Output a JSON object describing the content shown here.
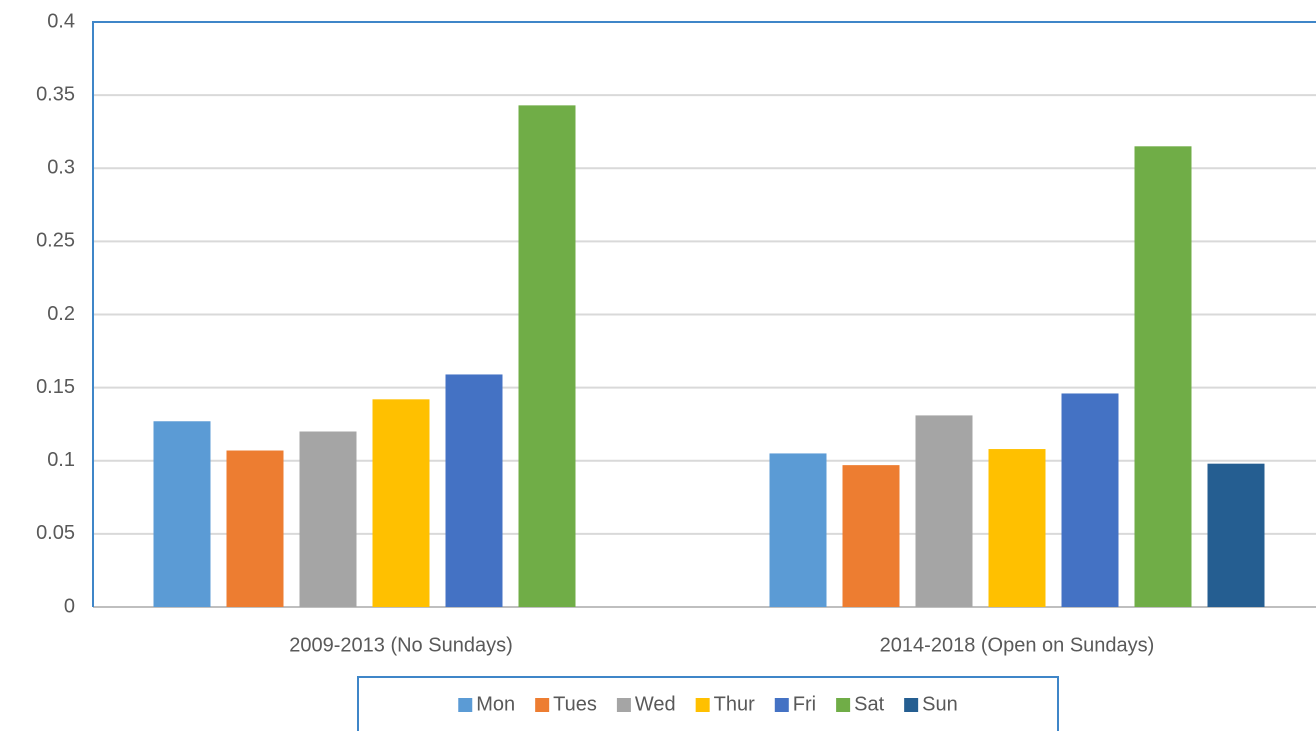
{
  "chart_data": {
    "type": "bar",
    "categories": [
      "2009-2013 (No Sundays)",
      "2014-2018 (Open on Sundays)"
    ],
    "series": [
      {
        "name": "Mon",
        "color": "#5b9bd5",
        "values": [
          0.127,
          0.105
        ]
      },
      {
        "name": "Tues",
        "color": "#ed7d31",
        "values": [
          0.107,
          0.097
        ]
      },
      {
        "name": "Wed",
        "color": "#a5a5a5",
        "values": [
          0.12,
          0.131
        ]
      },
      {
        "name": "Thur",
        "color": "#ffc000",
        "values": [
          0.142,
          0.108
        ]
      },
      {
        "name": "Fri",
        "color": "#4472c4",
        "values": [
          0.159,
          0.146
        ]
      },
      {
        "name": "Sat",
        "color": "#70ad47",
        "values": [
          0.343,
          0.315
        ]
      },
      {
        "name": "Sun",
        "color": "#255e91",
        "values": [
          null,
          0.098
        ]
      }
    ],
    "ylim": [
      0,
      0.4
    ],
    "yticks": [
      0,
      0.05,
      0.1,
      0.15,
      0.2,
      0.25,
      0.3,
      0.35,
      0.4
    ],
    "grid": true,
    "legend": "bottom"
  }
}
